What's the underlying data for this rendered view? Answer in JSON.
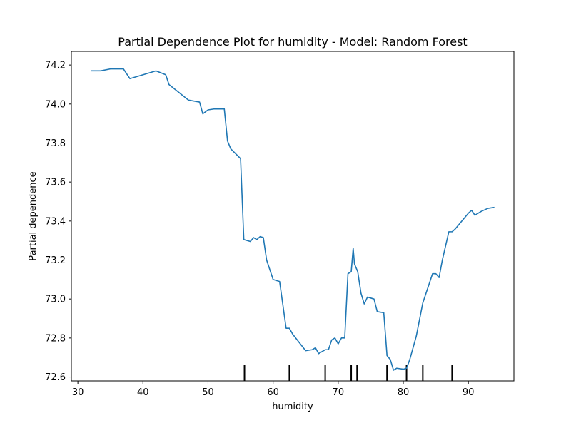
{
  "chart_data": {
    "type": "line",
    "title": "Partial Dependence Plot for humidity - Model: Random Forest",
    "xlabel": "humidity",
    "ylabel": "Partial dependence",
    "xlim": [
      29.0,
      97.0
    ],
    "ylim": [
      72.58,
      74.27
    ],
    "grid": false,
    "x_ticks": [
      30,
      40,
      50,
      60,
      70,
      80,
      90
    ],
    "y_ticks": [
      72.6,
      72.8,
      73.0,
      73.2,
      73.4,
      73.6,
      73.8,
      74.0,
      74.2
    ],
    "x_tick_labels": [
      "30",
      "40",
      "50",
      "60",
      "70",
      "80",
      "90"
    ],
    "y_tick_labels": [
      "72.6",
      "72.8",
      "73.0",
      "73.2",
      "73.4",
      "73.6",
      "73.8",
      "74.0",
      "74.2"
    ],
    "line_color": "#1f77b4",
    "rug_color": "#000000",
    "deciles": [
      55.6,
      62.5,
      68.0,
      72.0,
      72.9,
      77.5,
      80.5,
      83.0,
      87.5
    ],
    "series": [
      {
        "x": [
          32.0,
          33.5,
          35.0,
          37.0,
          38.0,
          42.0,
          43.5,
          44.0,
          47.0,
          48.7,
          49.2,
          50.0,
          51.0,
          52.5,
          53.0,
          53.5,
          55.0,
          55.5,
          56.5,
          57.0,
          57.5,
          58.0,
          58.5,
          59.0,
          60.0,
          61.0,
          61.5,
          62.0,
          62.5,
          63.0,
          65.0,
          66.0,
          66.5,
          67.0,
          67.5,
          68.0,
          68.5,
          69.0,
          69.5,
          70.0,
          70.5,
          71.0,
          71.5,
          72.0,
          72.3,
          72.5,
          73.0,
          73.5,
          74.0,
          74.5,
          75.5,
          76.0,
          77.0,
          77.5,
          78.0,
          78.5,
          79.0,
          80.0,
          80.5,
          81.0,
          82.0,
          83.0,
          84.5,
          85.0,
          85.5,
          86.0,
          87.0,
          87.5,
          88.0,
          90.0,
          90.5,
          91.0,
          92.0,
          93.0,
          94.0
        ],
        "y": [
          74.17,
          74.17,
          74.18,
          74.18,
          74.13,
          74.17,
          74.15,
          74.1,
          74.02,
          74.01,
          73.95,
          73.97,
          73.975,
          73.975,
          73.81,
          73.77,
          73.72,
          73.305,
          73.295,
          73.315,
          73.305,
          73.32,
          73.315,
          73.2,
          73.1,
          73.09,
          72.97,
          72.85,
          72.85,
          72.82,
          72.735,
          72.74,
          72.75,
          72.72,
          72.73,
          72.74,
          72.74,
          72.79,
          72.8,
          72.77,
          72.8,
          72.8,
          73.13,
          73.14,
          73.26,
          73.18,
          73.14,
          73.03,
          72.975,
          73.01,
          73.0,
          72.935,
          72.93,
          72.71,
          72.69,
          72.635,
          72.645,
          72.64,
          72.645,
          72.69,
          72.81,
          72.98,
          73.13,
          73.13,
          73.11,
          73.2,
          73.345,
          73.345,
          73.36,
          73.44,
          73.455,
          73.43,
          73.45,
          73.465,
          73.47
        ]
      }
    ]
  }
}
